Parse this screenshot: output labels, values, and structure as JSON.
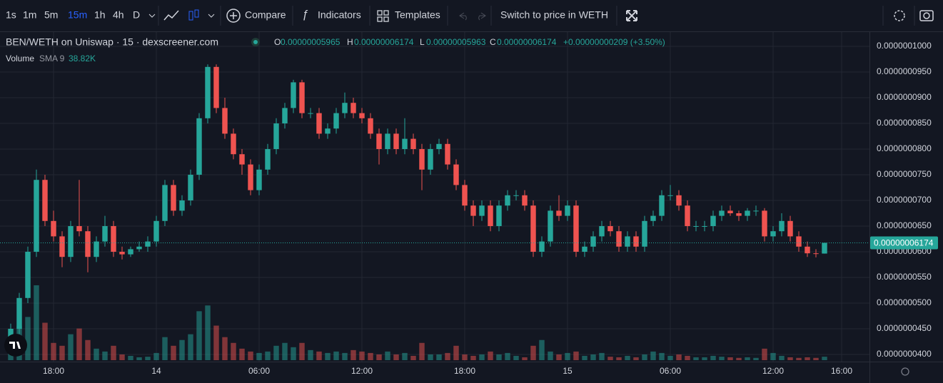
{
  "toolbar": {
    "intervals": [
      "1s",
      "1m",
      "5m",
      "15m",
      "1h",
      "4h",
      "D"
    ],
    "compare": "Compare",
    "indicators": "Indicators",
    "templates": "Templates",
    "switch": "Switch to price in WETH"
  },
  "chart_data": {
    "type": "candlestick",
    "title": "BEN/WETH on Uniswap · 15 · dexscreener.com",
    "up_color": "#26a69a",
    "down_color": "#ef5350",
    "grid": true,
    "open": [
      4.3e-08,
      4.5e-08,
      5.1e-08,
      6e-08,
      7.4e-08,
      6.6e-08,
      6.3e-08,
      5.9e-08,
      6.5e-08,
      6.4e-08,
      5.9e-08,
      6.2e-08,
      6.5e-08,
      6e-08,
      5.95e-08,
      6.05e-08,
      6.1e-08,
      6.2e-08,
      6.6e-08,
      7.3e-08,
      6.8e-08,
      7e-08,
      7.5e-08,
      8.6e-08,
      9.6e-08,
      8.8e-08,
      8.3e-08,
      7.9e-08,
      7.7e-08,
      7.2e-08,
      7.6e-08,
      8e-08,
      8.5e-08,
      8.8e-08,
      9.3e-08,
      8.7e-08,
      8.7e-08,
      8.3e-08,
      8.4e-08,
      8.7e-08,
      8.9e-08,
      8.7e-08,
      8.6e-08,
      8.3e-08,
      8e-08,
      8.3e-08,
      8e-08,
      8.2e-08,
      8e-08,
      7.6e-08,
      8e-08,
      8.1e-08,
      7.7e-08,
      7.3e-08,
      6.9e-08,
      6.7e-08,
      6.9e-08,
      6.5e-08,
      6.9e-08,
      7.1e-08,
      7.1e-08,
      6.9e-08,
      6e-08,
      6.2e-08,
      6.8e-08,
      6.7e-08,
      6.9e-08,
      6e-08,
      6.1e-08,
      6.3e-08,
      6.5e-08,
      6.4e-08,
      6.1e-08,
      6.3e-08,
      6.1e-08,
      6.6e-08,
      6.7e-08,
      7.1e-08,
      7.1e-08,
      6.9e-08,
      6.5e-08,
      6.5e-08,
      6.5e-08,
      6.7e-08,
      6.8e-08,
      6.75e-08,
      6.7e-08,
      6.8e-08,
      6.8e-08,
      6.3e-08,
      6.4e-08,
      6.6e-08,
      6.3e-08,
      6.1e-08,
      5.97e-08,
      5.965e-08
    ],
    "high": [
      4.6e-08,
      5.2e-08,
      6.1e-08,
      7.6e-08,
      7.5e-08,
      6.8e-08,
      6.4e-08,
      6.6e-08,
      7.4e-08,
      6.5e-08,
      6.3e-08,
      6.7e-08,
      6.6e-08,
      6.1e-08,
      6.1e-08,
      6.2e-08,
      6.3e-08,
      6.7e-08,
      7.4e-08,
      7.4e-08,
      7.1e-08,
      7.6e-08,
      8.7e-08,
      9.65e-08,
      9.65e-08,
      9e-08,
      8.4e-08,
      8e-08,
      7.8e-08,
      7.7e-08,
      8.1e-08,
      8.6e-08,
      8.9e-08,
      9.35e-08,
      9.35e-08,
      8.8e-08,
      8.8e-08,
      8.5e-08,
      8.8e-08,
      9.1e-08,
      9e-08,
      8.8e-08,
      8.7e-08,
      8.4e-08,
      8.4e-08,
      8.4e-08,
      8.6e-08,
      8.3e-08,
      8.1e-08,
      8.1e-08,
      8.2e-08,
      8.2e-08,
      7.8e-08,
      7.4e-08,
      7e-08,
      7e-08,
      7e-08,
      7e-08,
      7.2e-08,
      7.2e-08,
      7.2e-08,
      7e-08,
      6.3e-08,
      6.9e-08,
      7.1e-08,
      7e-08,
      7e-08,
      6.2e-08,
      6.4e-08,
      6.6e-08,
      6.6e-08,
      6.5e-08,
      6.4e-08,
      6.4e-08,
      6.7e-08,
      6.8e-08,
      7.2e-08,
      7.3e-08,
      7.2e-08,
      7e-08,
      6.6e-08,
      6.6e-08,
      6.8e-08,
      6.9e-08,
      6.9e-08,
      6.8e-08,
      6.85e-08,
      6.9e-08,
      6.85e-08,
      6.5e-08,
      6.75e-08,
      6.7e-08,
      6.4e-08,
      6.2e-08,
      6.05e-08,
      6.174e-08
    ],
    "low": [
      4.2e-08,
      4.4e-08,
      5e-08,
      5.9e-08,
      6.5e-08,
      6.2e-08,
      5.7e-08,
      5.8e-08,
      6.3e-08,
      5.6e-08,
      5.8e-08,
      6.1e-08,
      5.9e-08,
      5.85e-08,
      5.9e-08,
      6e-08,
      6e-08,
      6.1e-08,
      6.5e-08,
      6.7e-08,
      6.7e-08,
      6.9e-08,
      7.4e-08,
      8.5e-08,
      8.7e-08,
      8.2e-08,
      7.8e-08,
      7.5e-08,
      7.1e-08,
      7.1e-08,
      7.5e-08,
      7.9e-08,
      8.4e-08,
      8.7e-08,
      8.6e-08,
      8.6e-08,
      8.2e-08,
      8.2e-08,
      8.3e-08,
      8.6e-08,
      8.6e-08,
      8.5e-08,
      8.2e-08,
      7.7e-08,
      7.9e-08,
      7.9e-08,
      7.9e-08,
      7.9e-08,
      7.2e-08,
      7.5e-08,
      7.9e-08,
      7.6e-08,
      7.2e-08,
      6.8e-08,
      6.5e-08,
      6.6e-08,
      6.4e-08,
      6.4e-08,
      6.8e-08,
      7e-08,
      6.8e-08,
      5.9e-08,
      5.9e-08,
      6.1e-08,
      6.6e-08,
      6.6e-08,
      5.9e-08,
      5.9e-08,
      6e-08,
      6.2e-08,
      6.3e-08,
      6e-08,
      6e-08,
      6e-08,
      6e-08,
      6.5e-08,
      6.6e-08,
      7e-08,
      6.8e-08,
      6.4e-08,
      6.4e-08,
      6.4e-08,
      6.4e-08,
      6.6e-08,
      6.7e-08,
      6.6e-08,
      6.6e-08,
      6.7e-08,
      6.2e-08,
      6.2e-08,
      6.3e-08,
      6.2e-08,
      6e-08,
      5.9e-08,
      5.89e-08,
      5.963e-08
    ],
    "close": [
      4.5e-08,
      5.1e-08,
      6e-08,
      7.4e-08,
      6.6e-08,
      6.3e-08,
      5.9e-08,
      6.5e-08,
      6.4e-08,
      5.9e-08,
      6.2e-08,
      6.5e-08,
      6e-08,
      5.95e-08,
      6.05e-08,
      6.1e-08,
      6.2e-08,
      6.6e-08,
      7.3e-08,
      6.8e-08,
      7e-08,
      7.5e-08,
      8.6e-08,
      9.6e-08,
      8.8e-08,
      8.3e-08,
      7.9e-08,
      7.7e-08,
      7.2e-08,
      7.6e-08,
      8e-08,
      8.5e-08,
      8.8e-08,
      9.3e-08,
      8.7e-08,
      8.7e-08,
      8.3e-08,
      8.4e-08,
      8.7e-08,
      8.9e-08,
      8.7e-08,
      8.6e-08,
      8.3e-08,
      8e-08,
      8.3e-08,
      8e-08,
      8.2e-08,
      8e-08,
      7.6e-08,
      8e-08,
      8.1e-08,
      7.7e-08,
      7.3e-08,
      6.9e-08,
      6.7e-08,
      6.9e-08,
      6.5e-08,
      6.9e-08,
      7.1e-08,
      7.1e-08,
      6.9e-08,
      6e-08,
      6.2e-08,
      6.8e-08,
      6.7e-08,
      6.9e-08,
      6e-08,
      6.1e-08,
      6.3e-08,
      6.5e-08,
      6.4e-08,
      6.1e-08,
      6.3e-08,
      6.1e-08,
      6.6e-08,
      6.7e-08,
      7.1e-08,
      7.1e-08,
      6.9e-08,
      6.5e-08,
      6.5e-08,
      6.5e-08,
      6.7e-08,
      6.8e-08,
      6.75e-08,
      6.7e-08,
      6.8e-08,
      6.8e-08,
      6.3e-08,
      6.4e-08,
      6.6e-08,
      6.3e-08,
      6.1e-08,
      5.97e-08,
      5.96e-08,
      6.174e-08
    ],
    "volume": [
      40000,
      120000,
      150000,
      260000,
      130000,
      60000,
      50000,
      90000,
      110000,
      70000,
      40000,
      30000,
      50000,
      20000,
      15000,
      10000,
      12000,
      25000,
      80000,
      50000,
      70000,
      90000,
      170000,
      190000,
      120000,
      80000,
      60000,
      40000,
      30000,
      25000,
      30000,
      50000,
      60000,
      45000,
      60000,
      35000,
      30000,
      25000,
      30000,
      25000,
      35000,
      30000,
      25000,
      20000,
      30000,
      20000,
      25000,
      15000,
      60000,
      20000,
      20000,
      25000,
      50000,
      20000,
      15000,
      20000,
      30000,
      20000,
      25000,
      15000,
      10000,
      50000,
      70000,
      30000,
      20000,
      25000,
      30000,
      15000,
      20000,
      25000,
      12000,
      10000,
      15000,
      10000,
      20000,
      30000,
      25000,
      15000,
      20000,
      15000,
      10000,
      10000,
      15000,
      12000,
      10000,
      8000,
      10000,
      8000,
      40000,
      25000,
      15000,
      10000,
      8000,
      10000,
      8000,
      12000
    ],
    "ylim": [
      3.861e-08,
      1.0278e-07
    ],
    "yticks": [
      {
        "value": 1e-07,
        "label": "0.0000001000"
      },
      {
        "value": 9.5e-08,
        "label": "0.0000000950"
      },
      {
        "value": 9e-08,
        "label": "0.0000000900"
      },
      {
        "value": 8.5e-08,
        "label": "0.0000000850"
      },
      {
        "value": 8e-08,
        "label": "0.0000000800"
      },
      {
        "value": 7.5e-08,
        "label": "0.0000000750"
      },
      {
        "value": 7e-08,
        "label": "0.0000000700"
      },
      {
        "value": 6.5e-08,
        "label": "0.0000000650"
      },
      {
        "value": 6e-08,
        "label": "0.0000000600"
      },
      {
        "value": 5.5e-08,
        "label": "0.0000000550"
      },
      {
        "value": 5e-08,
        "label": "0.0000000500"
      },
      {
        "value": 4.5e-08,
        "label": "0.0000000450"
      },
      {
        "value": 4e-08,
        "label": "0.0000000400"
      }
    ],
    "xlim": [
      -1.25,
      100.25
    ],
    "xticks": [
      {
        "value": 5,
        "label": "18:00"
      },
      {
        "value": 17,
        "label": "14"
      },
      {
        "value": 29,
        "label": "06:00"
      },
      {
        "value": 41,
        "label": "12:00"
      },
      {
        "value": 53,
        "label": "18:00"
      },
      {
        "value": 65,
        "label": "15"
      },
      {
        "value": 77,
        "label": "06:00"
      },
      {
        "value": 89,
        "label": "12:00"
      },
      {
        "value": 97,
        "label": "16:00"
      }
    ],
    "last_price_label": "0.00000006174",
    "ohlc_legend": [
      {
        "label": "O",
        "value": "0.00000005965"
      },
      {
        "label": "H",
        "value": "0.00000006174"
      },
      {
        "label": "L",
        "value": "0.00000005963"
      },
      {
        "label": "C",
        "value": "0.00000006174"
      }
    ],
    "change_label": "+0.00000000209 (+3.50%)",
    "volume_legend": {
      "name": "Volume",
      "sma": "SMA 9",
      "value": "38.82K"
    }
  }
}
